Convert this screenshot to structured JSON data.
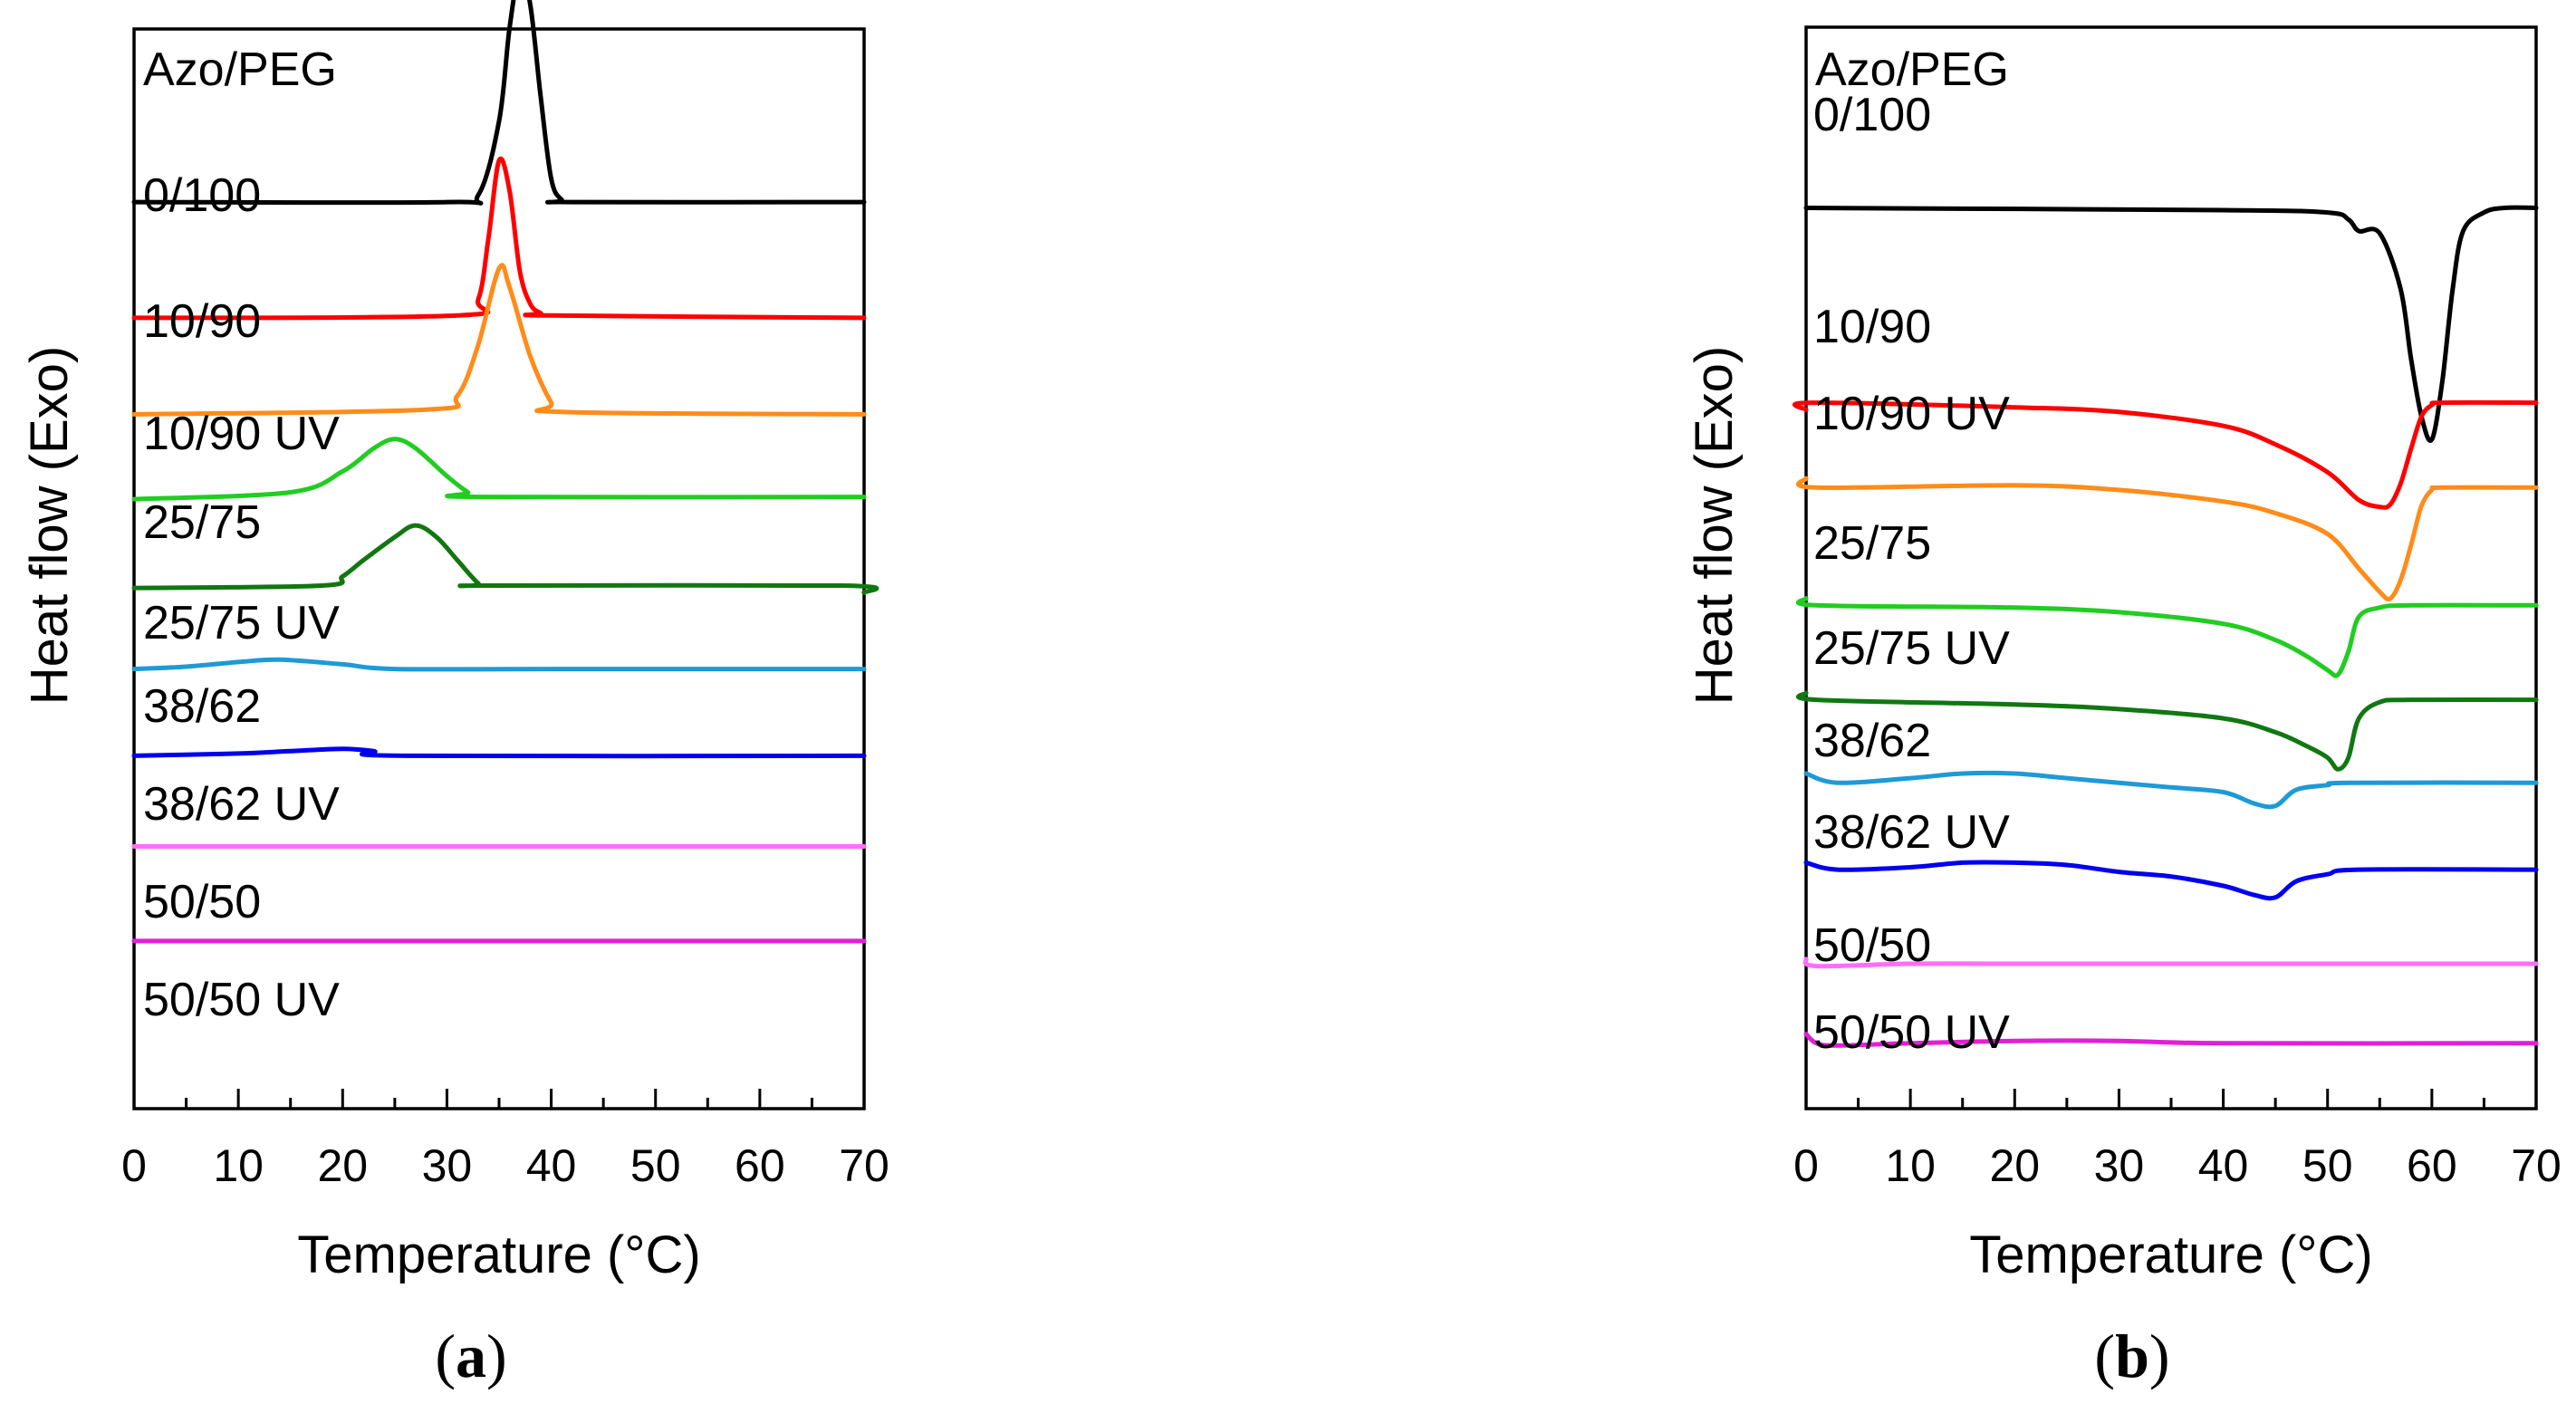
{
  "figure": {
    "panels": [
      {
        "caption_letter": "a",
        "header": "Azo/PEG",
        "xlabel": "Temperature (°C)",
        "ylabel": "Heat flow (Exo)",
        "xticks": [
          "0",
          "10",
          "20",
          "30",
          "40",
          "50",
          "60",
          "70"
        ]
      },
      {
        "caption_letter": "b",
        "header": "Azo/PEG",
        "xlabel": "Temperature (°C)",
        "ylabel": "Heat flow (Exo)",
        "xticks": [
          "0",
          "10",
          "20",
          "30",
          "40",
          "50",
          "60",
          "70"
        ]
      }
    ]
  },
  "chart_data": [
    {
      "type": "line",
      "panel": "a",
      "title": "",
      "xlabel": "Temperature (°C)",
      "ylabel": "Heat flow (Exo)",
      "xlim": [
        0,
        70
      ],
      "grid": false,
      "note_y": "y values are relative heat-flow amplitudes per curve (arbitrary units, curves stacked with offsets)",
      "series": [
        {
          "name": "0/100",
          "color": "#000000",
          "offset": 130,
          "points": [
            [
              0,
              0
            ],
            [
              30,
              0
            ],
            [
              33,
              3
            ],
            [
              35,
              35
            ],
            [
              36,
              75
            ],
            [
              37,
              100
            ],
            [
              38,
              85
            ],
            [
              39,
              45
            ],
            [
              40,
              10
            ],
            [
              41,
              1
            ],
            [
              42,
              0
            ],
            [
              70,
              0
            ]
          ]
        },
        {
          "name": "10/90",
          "color": "#ff0000",
          "offset": 70,
          "points": [
            [
              0,
              0
            ],
            [
              31,
              1
            ],
            [
              33,
              8
            ],
            [
              34,
              35
            ],
            [
              35,
              68
            ],
            [
              36,
              55
            ],
            [
              37,
              20
            ],
            [
              38,
              6
            ],
            [
              39,
              2
            ],
            [
              40,
              1
            ],
            [
              70,
              0
            ]
          ]
        },
        {
          "name": "10/90 UV",
          "color": "#ff8c1a",
          "offset": 20,
          "points": [
            [
              0,
              0
            ],
            [
              28,
              2
            ],
            [
              31,
              8
            ],
            [
              33,
              30
            ],
            [
              35,
              63
            ],
            [
              36,
              55
            ],
            [
              38,
              25
            ],
            [
              40,
              5
            ],
            [
              41,
              1
            ],
            [
              70,
              0
            ]
          ]
        },
        {
          "name": "25/75",
          "color": "#22cc22",
          "offset": -24,
          "points": [
            [
              0,
              0
            ],
            [
              15,
              3
            ],
            [
              20,
              12
            ],
            [
              23,
              22
            ],
            [
              25,
              26
            ],
            [
              27,
              22
            ],
            [
              30,
              10
            ],
            [
              32,
              3
            ],
            [
              33,
              1
            ],
            [
              70,
              1
            ]
          ]
        },
        {
          "name": "25/75 UV",
          "color": "#117711",
          "offset": -70,
          "points": [
            [
              0,
              0
            ],
            [
              18,
              1
            ],
            [
              20,
              5
            ],
            [
              22,
              12
            ],
            [
              25,
              22
            ],
            [
              27,
              27
            ],
            [
              29,
              22
            ],
            [
              31,
              12
            ],
            [
              33,
              2
            ],
            [
              34,
              1
            ],
            [
              68,
              1
            ],
            [
              70,
              -2
            ]
          ]
        },
        {
          "name": "38/62",
          "color": "#1e9ad6",
          "offset": -112,
          "points": [
            [
              0,
              0
            ],
            [
              5,
              1
            ],
            [
              10,
              3
            ],
            [
              14,
              4
            ],
            [
              20,
              2
            ],
            [
              25,
              0
            ],
            [
              40,
              0
            ],
            [
              70,
              0
            ]
          ]
        },
        {
          "name": "38/62 UV",
          "color": "#0000ee",
          "offset": -157,
          "points": [
            [
              0,
              0
            ],
            [
              10,
              1
            ],
            [
              15,
              2
            ],
            [
              20,
              3
            ],
            [
              23,
              2
            ],
            [
              26,
              0
            ],
            [
              70,
              0
            ]
          ]
        },
        {
          "name": "50/50",
          "color": "#ff6efa",
          "offset": -204,
          "points": [
            [
              0,
              0
            ],
            [
              70,
              0
            ]
          ]
        },
        {
          "name": "50/50 UV",
          "color": "#e31ed8",
          "offset": -253,
          "points": [
            [
              0,
              0
            ],
            [
              70,
              0
            ]
          ]
        }
      ]
    },
    {
      "type": "line",
      "panel": "b",
      "title": "",
      "xlabel": "Temperature (°C)",
      "ylabel": "Heat flow (Exo)",
      "xlim": [
        0,
        70
      ],
      "grid": false,
      "note_y": "y values are relative heat-flow amplitudes per curve (arbitrary units, curves stacked with offsets)",
      "series": [
        {
          "name": "0/100",
          "color": "#000000",
          "offset": 127,
          "points": [
            [
              0,
              0
            ],
            [
              40,
              -1
            ],
            [
              50,
              -2
            ],
            [
              52,
              -5
            ],
            [
              53,
              -10
            ],
            [
              55,
              -11
            ],
            [
              57,
              -35
            ],
            [
              58,
              -65
            ],
            [
              59,
              -90
            ],
            [
              60,
              -100
            ],
            [
              61,
              -75
            ],
            [
              62,
              -35
            ],
            [
              63,
              -10
            ],
            [
              65,
              -2
            ],
            [
              67,
              0
            ],
            [
              70,
              0
            ]
          ]
        },
        {
          "name": "10/90",
          "color": "#ff0000",
          "offset": 26,
          "points": [
            [
              0,
              -3
            ],
            [
              0.5,
              0
            ],
            [
              20,
              -2
            ],
            [
              30,
              -4
            ],
            [
              40,
              -10
            ],
            [
              45,
              -18
            ],
            [
              50,
              -30
            ],
            [
              53,
              -42
            ],
            [
              55,
              -45
            ],
            [
              56,
              -44
            ],
            [
              57,
              -35
            ],
            [
              58,
              -20
            ],
            [
              59,
              -6
            ],
            [
              60,
              -1
            ],
            [
              61,
              0
            ],
            [
              70,
              0
            ]
          ]
        },
        {
          "name": "10/90 UV",
          "color": "#ff8c1a",
          "offset": -18,
          "points": [
            [
              0,
              4
            ],
            [
              1,
              0
            ],
            [
              20,
              1
            ],
            [
              30,
              -1
            ],
            [
              40,
              -6
            ],
            [
              45,
              -11
            ],
            [
              50,
              -20
            ],
            [
              53,
              -35
            ],
            [
              55,
              -45
            ],
            [
              56,
              -48
            ],
            [
              57,
              -40
            ],
            [
              58,
              -25
            ],
            [
              59,
              -8
            ],
            [
              60,
              -1
            ],
            [
              61,
              0
            ],
            [
              70,
              0
            ]
          ]
        },
        {
          "name": "25/75",
          "color": "#22cc22",
          "offset": -79,
          "points": [
            [
              0,
              3
            ],
            [
              1,
              0
            ],
            [
              20,
              -1
            ],
            [
              30,
              -3
            ],
            [
              40,
              -8
            ],
            [
              45,
              -15
            ],
            [
              48,
              -22
            ],
            [
              50,
              -28
            ],
            [
              51,
              -30
            ],
            [
              52,
              -20
            ],
            [
              53,
              -5
            ],
            [
              55,
              -1
            ],
            [
              58,
              0
            ],
            [
              70,
              0
            ]
          ]
        },
        {
          "name": "25/75 UV",
          "color": "#117711",
          "offset": -128,
          "points": [
            [
              0,
              3
            ],
            [
              1,
              0
            ],
            [
              20,
              -2
            ],
            [
              30,
              -4
            ],
            [
              40,
              -8
            ],
            [
              45,
              -14
            ],
            [
              48,
              -20
            ],
            [
              50,
              -25
            ],
            [
              51,
              -30
            ],
            [
              52,
              -25
            ],
            [
              53,
              -8
            ],
            [
              55,
              -1
            ],
            [
              58,
              0
            ],
            [
              70,
              0
            ]
          ]
        },
        {
          "name": "38/62",
          "color": "#1e9ad6",
          "offset": -171,
          "points": [
            [
              0,
              4
            ],
            [
              3,
              0
            ],
            [
              10,
              2
            ],
            [
              15,
              4
            ],
            [
              20,
              4
            ],
            [
              25,
              2
            ],
            [
              30,
              0
            ],
            [
              35,
              -2
            ],
            [
              40,
              -4
            ],
            [
              43,
              -9
            ],
            [
              45,
              -10
            ],
            [
              47,
              -3
            ],
            [
              50,
              -1
            ],
            [
              52,
              0
            ],
            [
              70,
              0
            ]
          ]
        },
        {
          "name": "38/62 UV",
          "color": "#0000ee",
          "offset": -216,
          "points": [
            [
              0,
              3
            ],
            [
              3,
              0
            ],
            [
              10,
              1
            ],
            [
              15,
              3
            ],
            [
              20,
              3
            ],
            [
              25,
              2
            ],
            [
              30,
              -1
            ],
            [
              35,
              -3
            ],
            [
              40,
              -7
            ],
            [
              43,
              -11
            ],
            [
              45,
              -12
            ],
            [
              47,
              -5
            ],
            [
              50,
              -2
            ],
            [
              53,
              0
            ],
            [
              70,
              0
            ]
          ]
        },
        {
          "name": "50/50",
          "color": "#ff6efa",
          "offset": -266,
          "points": [
            [
              0,
              3
            ],
            [
              1,
              0
            ],
            [
              10,
              1
            ],
            [
              20,
              1
            ],
            [
              40,
              1
            ],
            [
              70,
              1
            ]
          ]
        },
        {
          "name": "50/50 UV",
          "color": "#e31ed8",
          "offset": -306,
          "points": [
            [
              0,
              4
            ],
            [
              1,
              0
            ],
            [
              3,
              -1
            ],
            [
              10,
              0
            ],
            [
              20,
              1
            ],
            [
              30,
              1
            ],
            [
              40,
              0
            ],
            [
              70,
              0
            ]
          ]
        }
      ]
    }
  ]
}
